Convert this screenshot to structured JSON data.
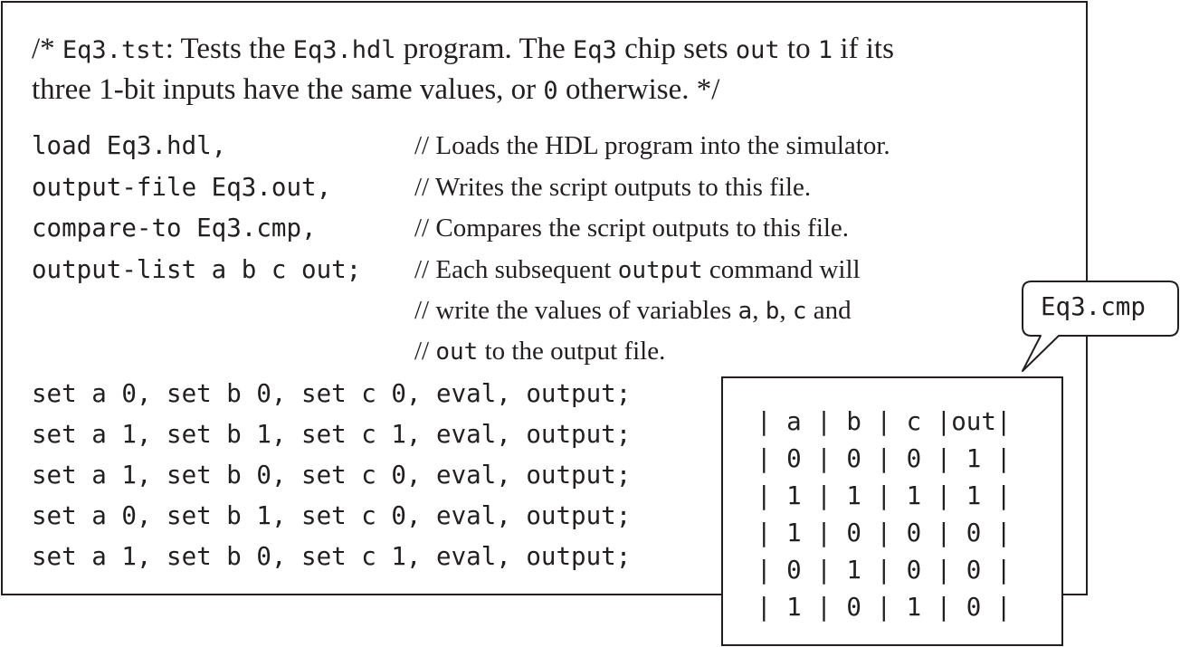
{
  "header": {
    "line1": {
      "p1": "/* ",
      "p2": "Eq3.tst",
      "p3": ": Tests the ",
      "p4": "Eq3.hdl",
      "p5": " program. The ",
      "p6": "Eq3",
      "p7": " chip sets ",
      "p8": "out",
      "p9": " to ",
      "p10": "1",
      "p11": " if its"
    },
    "line2": {
      "p1": "three 1-bit inputs have the same values, or ",
      "p2": "0",
      "p3": " otherwise. */"
    }
  },
  "script": {
    "setup_lines": [
      {
        "code": "load Eq3.hdl,",
        "comment": "// Loads the HDL program into the simulator."
      },
      {
        "code": "output-file Eq3.out,",
        "comment": "// Writes the script outputs to this file."
      },
      {
        "code": "compare-to Eq3.cmp,",
        "comment": "// Compares the script outputs to this file."
      },
      {
        "code": "output-list a b c out;",
        "comment_p1": "// Each subsequent ",
        "comment_p2": "output",
        "comment_p3": " command will"
      }
    ],
    "comment_cont1": {
      "p1": "// write the values of variables ",
      "p2": "a",
      "p3": ", ",
      "p4": "b",
      "p5": ", ",
      "p6": "c",
      "p7": " and"
    },
    "comment_cont2": {
      "p1": "// ",
      "p2": "out",
      "p3": " to the output file."
    },
    "test_lines": [
      "set a 0, set b 0, set c 0, eval, output;",
      "set a 1, set b 1, set c 1, eval, output;",
      "set a 1, set b 0, set c 0, eval, output;",
      "set a 0, set b 1, set c 0, eval, output;",
      "set a 1, set b 0, set c 1, eval, output;"
    ]
  },
  "callout": {
    "label": "Eq3.cmp"
  },
  "cmp_table": {
    "rows": [
      "| a | b | c |out|",
      "| 0 | 0 | 0 | 1 |",
      "| 1 | 1 | 1 | 1 |",
      "| 1 | 0 | 0 | 0 |",
      "| 0 | 1 | 0 | 0 |",
      "| 1 | 0 | 1 | 0 |"
    ]
  }
}
